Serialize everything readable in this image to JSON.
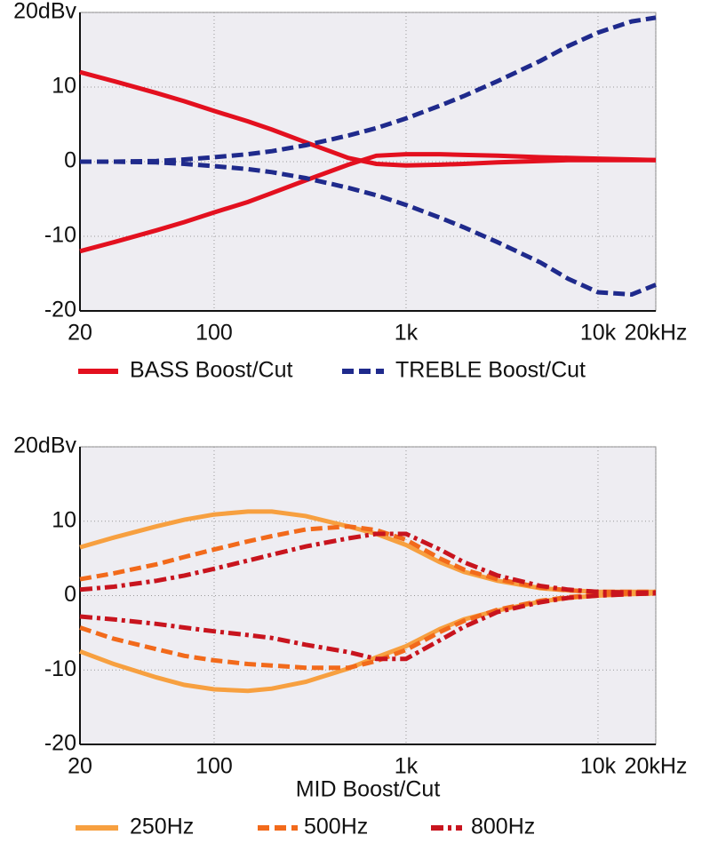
{
  "chart_data": [
    {
      "type": "line",
      "xscale": "log",
      "grid": true,
      "x": [
        20,
        30,
        50,
        70,
        100,
        150,
        200,
        300,
        500,
        700,
        1000,
        1500,
        2000,
        3000,
        5000,
        7000,
        10000,
        15000,
        20000
      ],
      "xlim": [
        20,
        20000
      ],
      "xticks": [
        20,
        100,
        {
          "value": 1000,
          "label": "1k"
        },
        {
          "value": 10000,
          "label": "10k"
        },
        {
          "value": 20000,
          "label": "20kHz"
        }
      ],
      "ylim": [
        -20,
        20
      ],
      "yticks": [
        {
          "value": 20,
          "label": "20dBv"
        },
        10,
        0,
        -10,
        -20
      ],
      "series": [
        {
          "name": "BASS Boost/Cut",
          "color": "#e3101f",
          "dash": "solid",
          "values": [
            [
              12,
              10.8,
              9.2,
              8.1,
              6.8,
              5.4,
              4.3,
              2.6,
              0.5,
              -0.3,
              -0.5,
              -0.4,
              -0.3,
              -0.1,
              0.1,
              0.2,
              0.2,
              0.2,
              0.2
            ],
            [
              -12,
              -10.8,
              -9.2,
              -8.1,
              -6.8,
              -5.4,
              -4.2,
              -2.5,
              -0.4,
              0.8,
              1,
              1,
              0.9,
              0.8,
              0.6,
              0.5,
              0.4,
              0.3,
              0.2
            ]
          ]
        },
        {
          "name": "TREBLE Boost/Cut",
          "color": "#1f2a8c",
          "dash": "dashed",
          "values": [
            [
              0,
              0,
              0.1,
              0.3,
              0.6,
              1,
              1.4,
              2.2,
              3.5,
              4.5,
              5.8,
              7.5,
              8.8,
              10.8,
              13.5,
              15.5,
              17.3,
              18.8,
              19.3
            ],
            [
              0,
              0,
              -0.1,
              -0.3,
              -0.6,
              -1,
              -1.4,
              -2.2,
              -3.5,
              -4.5,
              -5.8,
              -7.5,
              -8.8,
              -10.8,
              -13.5,
              -15.7,
              -17.5,
              -17.8,
              -16.5
            ]
          ]
        }
      ]
    },
    {
      "type": "line",
      "xscale": "log",
      "grid": true,
      "xlabel": "MID Boost/Cut",
      "x": [
        20,
        30,
        50,
        70,
        100,
        150,
        200,
        300,
        500,
        700,
        1000,
        1500,
        2000,
        3000,
        5000,
        7000,
        10000,
        15000,
        20000
      ],
      "xlim": [
        20,
        20000
      ],
      "xticks": [
        20,
        100,
        {
          "value": 1000,
          "label": "1k"
        },
        {
          "value": 10000,
          "label": "10k"
        },
        {
          "value": 20000,
          "label": "20kHz"
        }
      ],
      "ylim": [
        -20,
        20
      ],
      "yticks": [
        {
          "value": 20,
          "label": "20dBv"
        },
        10,
        0,
        -10,
        -20
      ],
      "series": [
        {
          "name": "250Hz",
          "color": "#f7a040",
          "dash": "solid",
          "values": [
            [
              6.5,
              7.8,
              9.3,
              10.2,
              10.9,
              11.3,
              11.3,
              10.7,
              9.3,
              8.3,
              6.8,
              4.5,
              3.2,
              2,
              1,
              0.7,
              0.5,
              0.5,
              0.5
            ],
            [
              -7.5,
              -9.2,
              -11,
              -12,
              -12.6,
              -12.8,
              -12.5,
              -11.6,
              -9.8,
              -8.3,
              -6.8,
              -4.5,
              -3.2,
              -2,
              -0.8,
              -0.3,
              0,
              0.2,
              0.3
            ]
          ]
        },
        {
          "name": "500Hz",
          "color": "#f26a1b",
          "dash": "dashed",
          "values": [
            [
              2.2,
              3,
              4.2,
              5.2,
              6.2,
              7.3,
              8,
              8.9,
              9.3,
              8.8,
              7.5,
              5,
              3.5,
              2.2,
              1.1,
              0.7,
              0.5,
              0.5,
              0.5
            ],
            [
              -4.3,
              -5.8,
              -7.2,
              -8.1,
              -8.7,
              -9.2,
              -9.4,
              -9.7,
              -9.7,
              -8.8,
              -7.3,
              -4.9,
              -3.4,
              -1.9,
              -0.7,
              -0.2,
              0.1,
              0.3,
              0.3
            ]
          ]
        },
        {
          "name": "800Hz",
          "color": "#c8141e",
          "dash": "dashdot",
          "values": [
            [
              0.8,
              1.2,
              2,
              2.7,
              3.6,
              4.7,
              5.5,
              6.6,
              7.7,
              8.3,
              8.3,
              6.2,
              4.5,
              2.7,
              1.3,
              0.8,
              0.5,
              0.4,
              0.4
            ],
            [
              -2.8,
              -3.2,
              -3.8,
              -4.3,
              -4.8,
              -5.3,
              -5.7,
              -6.6,
              -7.6,
              -8.5,
              -8.5,
              -6,
              -4.2,
              -2.2,
              -0.9,
              -0.3,
              0,
              0.2,
              0.3
            ]
          ]
        }
      ]
    }
  ]
}
